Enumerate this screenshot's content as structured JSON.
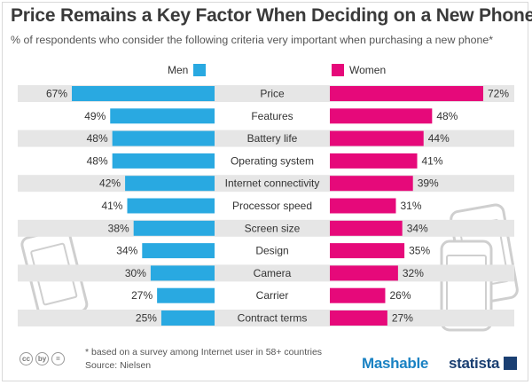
{
  "header": {
    "title": "Price Remains a Key Factor When Deciding on a New Phone",
    "subtitle": "% of respondents who consider the following criteria very important when purchasing a new phone*"
  },
  "colors": {
    "men": "#29a9e1",
    "women": "#e6097a",
    "row_stripe": "#e6e6e6",
    "phone_outline": "#c8c8c8"
  },
  "chart_data": {
    "type": "bar",
    "title": "Price Remains a Key Factor When Deciding on a New Phone",
    "categories": [
      "Price",
      "Features",
      "Battery life",
      "Operating system",
      "Internet connectivity",
      "Processor speed",
      "Screen size",
      "Design",
      "Camera",
      "Carrier",
      "Contract terms"
    ],
    "series": [
      {
        "name": "Men",
        "values": [
          67,
          49,
          48,
          48,
          42,
          41,
          38,
          34,
          30,
          27,
          25
        ],
        "labels": [
          "67%",
          "49%",
          "48%",
          "48%",
          "42%",
          "41%",
          "38%",
          "34%",
          "30%",
          "27%",
          "25%"
        ]
      },
      {
        "name": "Women",
        "values": [
          72,
          48,
          44,
          41,
          39,
          31,
          34,
          35,
          32,
          26,
          27
        ],
        "labels": [
          "72%",
          "48%",
          "44%",
          "41%",
          "39%",
          "31%",
          "34%",
          "35%",
          "32%",
          "26%",
          "27%"
        ]
      }
    ],
    "xlabel": "",
    "ylabel": "",
    "xlim": [
      0,
      72
    ],
    "legend": [
      "Men",
      "Women"
    ]
  },
  "footer": {
    "note": "* based on a survey among Internet user in 58+ countries",
    "source": "Source: Nielsen",
    "license_icons": [
      "cc",
      "by",
      "="
    ],
    "brand_mashable": "Mashable",
    "brand_statista": "statista"
  }
}
